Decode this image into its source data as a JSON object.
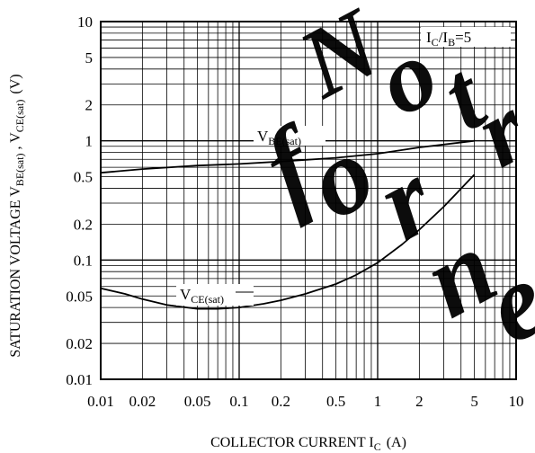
{
  "chart_data": {
    "type": "line",
    "xscale": "log",
    "yscale": "log",
    "xlim": [
      0.01,
      10
    ],
    "ylim": [
      0.01,
      10
    ],
    "grid": true,
    "xlabel": "COLLECTOR CURRENT I",
    "xlabel_sub": "C",
    "xlabel_unit": "(A)",
    "ylabel": "SATURATION VOLTAGE  V",
    "ylabel_sub1": "BE(sat)",
    "ylabel_sep": " , V",
    "ylabel_sub2": "CE(sat)",
    "ylabel_unit": "(V)",
    "x_ticks": [
      "0.01",
      "0.02",
      "0.05",
      "0.1",
      "0.2",
      "0.5",
      "1",
      "2",
      "5",
      "10"
    ],
    "x_tick_values": [
      0.01,
      0.02,
      0.05,
      0.1,
      0.2,
      0.5,
      1,
      2,
      5,
      10
    ],
    "y_ticks": [
      "0.01",
      "0.02",
      "0.05",
      "0.1",
      "0.2",
      "0.5",
      "1",
      "2",
      "5",
      "10"
    ],
    "y_tick_values": [
      0.01,
      0.02,
      0.05,
      0.1,
      0.2,
      0.5,
      1,
      2,
      5,
      10
    ],
    "condition": {
      "main": "I",
      "sub1": "C",
      "mid": "/I",
      "sub2": "B",
      "tail": "=5"
    },
    "series": [
      {
        "name": "V",
        "name_sub": "BE(sat)",
        "x": [
          0.01,
          0.02,
          0.05,
          0.1,
          0.2,
          0.5,
          1,
          2,
          5
        ],
        "y": [
          0.54,
          0.58,
          0.62,
          0.64,
          0.67,
          0.72,
          0.78,
          0.88,
          1.0
        ]
      },
      {
        "name": "V",
        "name_sub": "CE(sat)",
        "x": [
          0.01,
          0.015,
          0.02,
          0.03,
          0.05,
          0.07,
          0.1,
          0.15,
          0.2,
          0.3,
          0.5,
          0.7,
          1,
          1.5,
          2,
          3,
          5
        ],
        "y": [
          0.058,
          0.052,
          0.047,
          0.042,
          0.039,
          0.039,
          0.04,
          0.043,
          0.046,
          0.052,
          0.063,
          0.075,
          0.095,
          0.135,
          0.18,
          0.28,
          0.52
        ]
      }
    ],
    "watermark": "Not recommended for new designs"
  }
}
